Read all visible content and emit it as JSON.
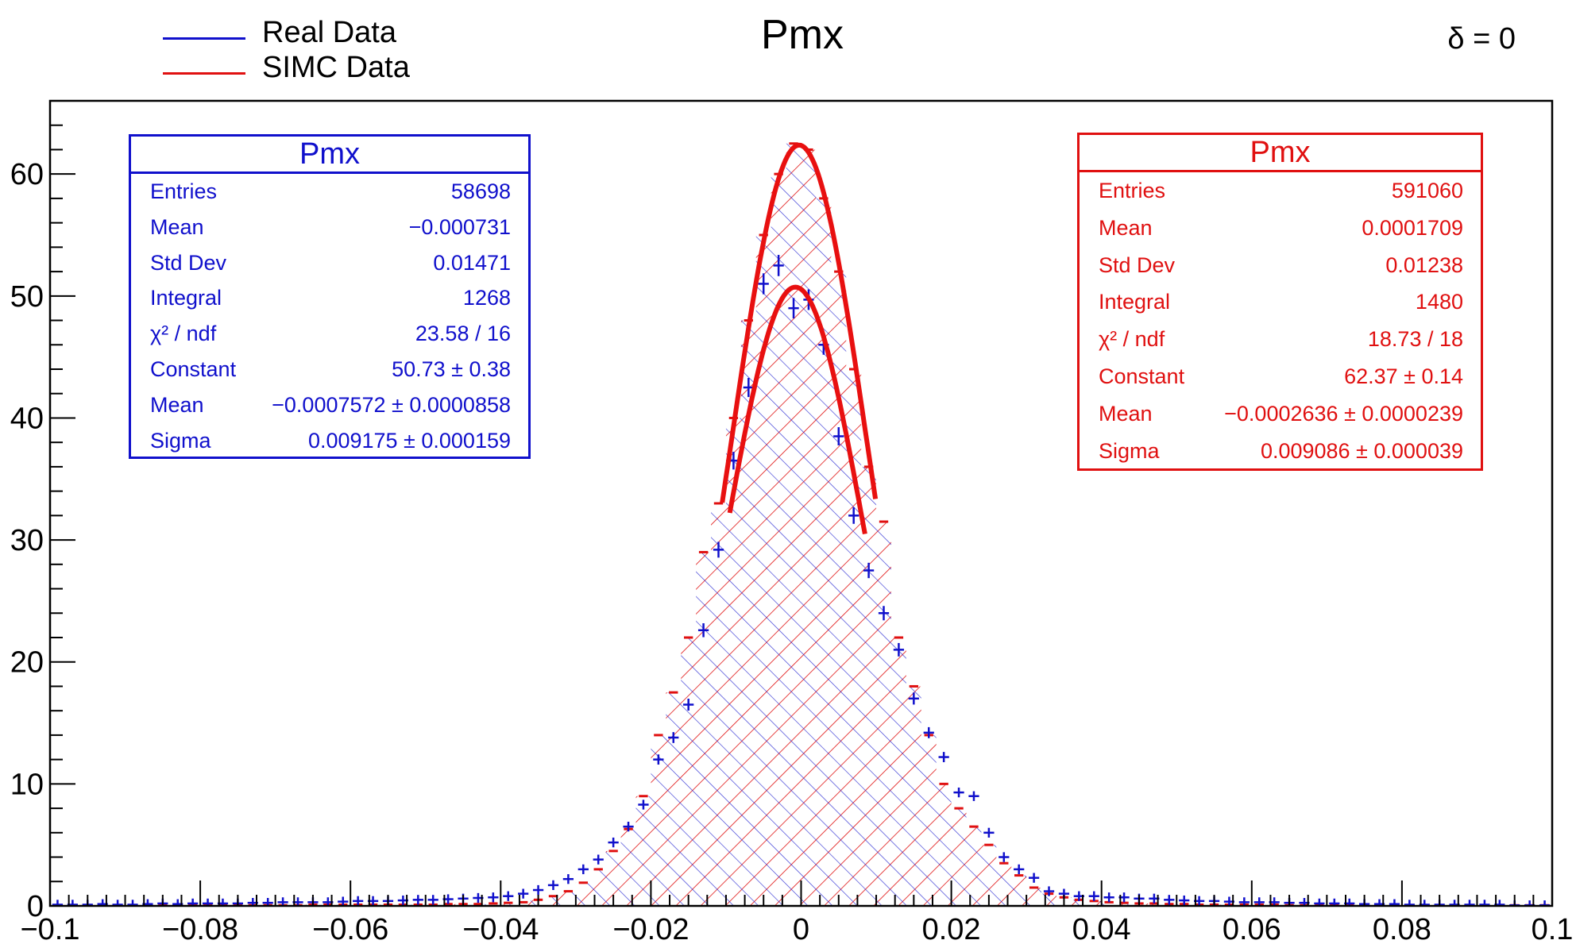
{
  "title": "Pmx",
  "corner_label": "δ = 0",
  "legend": [
    {
      "label": "Real Data",
      "color": "#1010cc"
    },
    {
      "label": "SIMC Data",
      "color": "#e01010"
    }
  ],
  "stats": {
    "real": {
      "title": "Pmx",
      "rows": [
        {
          "label": "Entries",
          "value": "58698"
        },
        {
          "label": "Mean",
          "value": "−0.000731"
        },
        {
          "label": "Std Dev",
          "value": "0.01471"
        },
        {
          "label": "Integral",
          "value": "1268"
        },
        {
          "label": "χ² / ndf",
          "value": "23.58 / 16"
        },
        {
          "label": "Constant",
          "value": "50.73 ± 0.38"
        },
        {
          "label": "Mean",
          "value": "−0.0007572 ± 0.0000858"
        },
        {
          "label": "Sigma",
          "value": "0.009175 ± 0.000159"
        }
      ]
    },
    "simc": {
      "title": "Pmx",
      "rows": [
        {
          "label": "Entries",
          "value": "591060"
        },
        {
          "label": "Mean",
          "value": "0.0001709"
        },
        {
          "label": "Std Dev",
          "value": "0.01238"
        },
        {
          "label": "Integral",
          "value": "1480"
        },
        {
          "label": "χ² / ndf",
          "value": "18.73 / 18"
        },
        {
          "label": "Constant",
          "value": "62.37 ± 0.14"
        },
        {
          "label": "Mean",
          "value": "−0.0002636 ± 0.0000239"
        },
        {
          "label": "Sigma",
          "value": "0.009086 ± 0.000039"
        }
      ]
    }
  },
  "chart_data": {
    "type": "histogram",
    "xlim": [
      -0.1,
      0.1
    ],
    "ylim": [
      0,
      66
    ],
    "x_ticks": [
      "−0.1",
      "−0.08",
      "−0.06",
      "−0.04",
      "−0.02",
      "0",
      "0.02",
      "0.04",
      "0.06",
      "0.08",
      "0.1"
    ],
    "y_ticks": [
      "0",
      "10",
      "20",
      "30",
      "40",
      "50",
      "60"
    ],
    "grid": false,
    "bin_width": 0.002,
    "series": [
      {
        "name": "Real Data",
        "color": "#1010cc",
        "style": "points-with-errors",
        "x": [
          -0.099,
          -0.097,
          -0.095,
          -0.093,
          -0.091,
          -0.089,
          -0.087,
          -0.085,
          -0.083,
          -0.081,
          -0.079,
          -0.077,
          -0.075,
          -0.073,
          -0.071,
          -0.069,
          -0.067,
          -0.065,
          -0.063,
          -0.061,
          -0.059,
          -0.057,
          -0.055,
          -0.053,
          -0.051,
          -0.049,
          -0.047,
          -0.045,
          -0.043,
          -0.041,
          -0.039,
          -0.037,
          -0.035,
          -0.033,
          -0.031,
          -0.029,
          -0.027,
          -0.025,
          -0.023,
          -0.021,
          -0.019,
          -0.017,
          -0.015,
          -0.013,
          -0.011,
          -0.009,
          -0.007,
          -0.005,
          -0.003,
          -0.001,
          0.001,
          0.003,
          0.005,
          0.007,
          0.009,
          0.011,
          0.013,
          0.015,
          0.017,
          0.019,
          0.021,
          0.023,
          0.025,
          0.027,
          0.029,
          0.031,
          0.033,
          0.035,
          0.037,
          0.039,
          0.041,
          0.043,
          0.045,
          0.047,
          0.049,
          0.051,
          0.053,
          0.055,
          0.057,
          0.059,
          0.061,
          0.063,
          0.065,
          0.067,
          0.069,
          0.071,
          0.073,
          0.075,
          0.077,
          0.079,
          0.081,
          0.083,
          0.085,
          0.087,
          0.089,
          0.091,
          0.093,
          0.095,
          0.097,
          0.099
        ],
        "y": [
          0.1,
          0.1,
          0.1,
          0.15,
          0.1,
          0.1,
          0.15,
          0.2,
          0.15,
          0.2,
          0.2,
          0.2,
          0.2,
          0.25,
          0.25,
          0.3,
          0.3,
          0.3,
          0.3,
          0.35,
          0.4,
          0.4,
          0.4,
          0.45,
          0.5,
          0.5,
          0.55,
          0.6,
          0.65,
          0.7,
          0.8,
          1.0,
          1.3,
          1.7,
          2.2,
          3.0,
          3.8,
          5.2,
          6.5,
          8.3,
          12.0,
          13.8,
          16.5,
          22.6,
          29.2,
          36.5,
          42.5,
          51.0,
          52.5,
          49.0,
          49.7,
          46.0,
          38.5,
          32.0,
          27.5,
          24.0,
          21.0,
          17.0,
          14.2,
          12.2,
          9.3,
          9.0,
          6.0,
          4.0,
          3.0,
          2.3,
          1.2,
          1.0,
          0.8,
          0.8,
          0.7,
          0.7,
          0.6,
          0.6,
          0.5,
          0.45,
          0.4,
          0.4,
          0.35,
          0.3,
          0.3,
          0.3,
          0.25,
          0.25,
          0.2,
          0.2,
          0.2,
          0.15,
          0.15,
          0.15,
          0.1,
          0.1,
          0.1,
          0.1,
          0.1,
          0.1,
          0.1,
          0.05,
          0.05,
          0.05
        ],
        "fit": {
          "type": "gaus",
          "constant": 50.73,
          "mean": -0.0007572,
          "sigma": 0.009175,
          "range": [
            -0.0095,
            0.0085
          ]
        }
      },
      {
        "name": "SIMC Data",
        "color": "#e01010",
        "style": "hatched-histogram",
        "x": [
          -0.099,
          -0.097,
          -0.095,
          -0.093,
          -0.091,
          -0.089,
          -0.087,
          -0.085,
          -0.083,
          -0.081,
          -0.079,
          -0.077,
          -0.075,
          -0.073,
          -0.071,
          -0.069,
          -0.067,
          -0.065,
          -0.063,
          -0.061,
          -0.059,
          -0.057,
          -0.055,
          -0.053,
          -0.051,
          -0.049,
          -0.047,
          -0.045,
          -0.043,
          -0.041,
          -0.039,
          -0.037,
          -0.035,
          -0.033,
          -0.031,
          -0.029,
          -0.027,
          -0.025,
          -0.023,
          -0.021,
          -0.019,
          -0.017,
          -0.015,
          -0.013,
          -0.011,
          -0.009,
          -0.007,
          -0.005,
          -0.003,
          -0.001,
          0.001,
          0.003,
          0.005,
          0.007,
          0.009,
          0.011,
          0.013,
          0.015,
          0.017,
          0.019,
          0.021,
          0.023,
          0.025,
          0.027,
          0.029,
          0.031,
          0.033,
          0.035,
          0.037,
          0.039,
          0.041,
          0.043,
          0.045,
          0.047,
          0.049,
          0.051,
          0.053,
          0.055,
          0.057,
          0.059,
          0.061,
          0.063,
          0.065,
          0.067,
          0.069,
          0.071,
          0.073,
          0.075,
          0.077,
          0.079,
          0.081,
          0.083,
          0.085,
          0.087,
          0.089,
          0.091,
          0.093,
          0.095,
          0.097,
          0.099
        ],
        "y": [
          0.05,
          0.05,
          0.05,
          0.05,
          0.05,
          0.05,
          0.05,
          0.05,
          0.05,
          0.05,
          0.05,
          0.05,
          0.05,
          0.05,
          0.05,
          0.05,
          0.05,
          0.1,
          0.1,
          0.1,
          0.1,
          0.1,
          0.1,
          0.1,
          0.1,
          0.1,
          0.15,
          0.15,
          0.15,
          0.2,
          0.25,
          0.3,
          0.5,
          0.8,
          1.2,
          1.9,
          3.0,
          4.5,
          6.3,
          9.0,
          14.0,
          17.5,
          22.0,
          29.0,
          33.0,
          40.0,
          48.0,
          55.0,
          60.0,
          62.5,
          62.0,
          58.0,
          52.0,
          44.0,
          36.0,
          31.5,
          22.0,
          18.0,
          14.0,
          10.0,
          8.0,
          6.5,
          5.0,
          3.5,
          2.5,
          1.5,
          1.0,
          0.7,
          0.5,
          0.4,
          0.3,
          0.25,
          0.2,
          0.2,
          0.15,
          0.15,
          0.1,
          0.1,
          0.1,
          0.1,
          0.1,
          0.1,
          0.05,
          0.05,
          0.05,
          0.05,
          0.05,
          0.05,
          0.05,
          0.05,
          0.05,
          0.05,
          0.05,
          0.05,
          0.05,
          0.05,
          0.05,
          0.05,
          0.05,
          0.05
        ],
        "fit": {
          "type": "gaus",
          "constant": 62.37,
          "mean": -0.0002636,
          "sigma": 0.009086,
          "range": [
            -0.0105,
            0.0099
          ]
        }
      }
    ]
  }
}
